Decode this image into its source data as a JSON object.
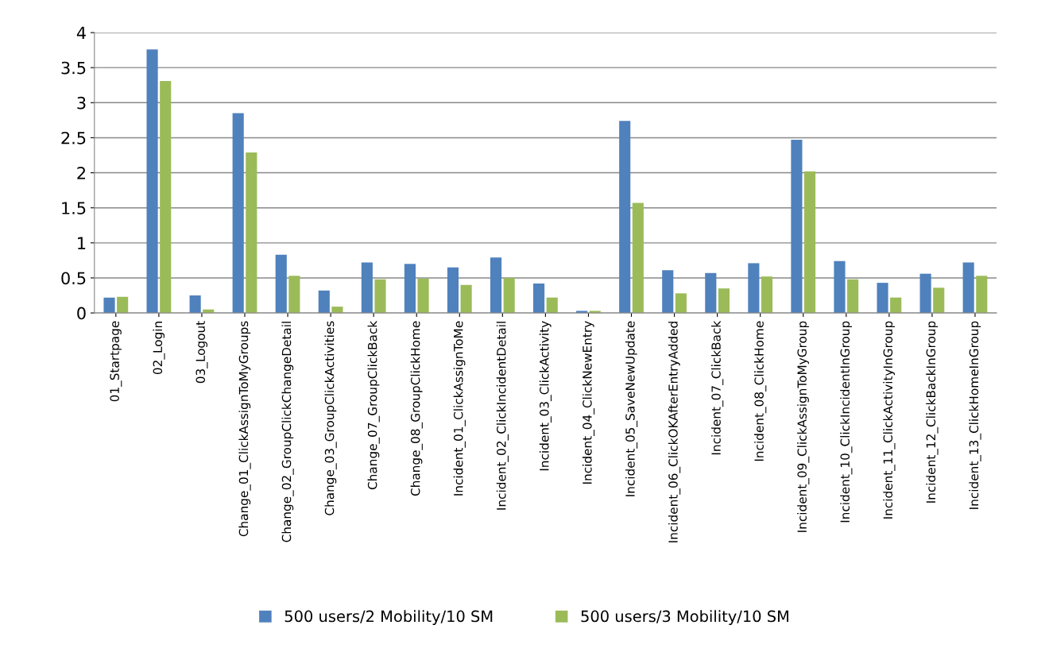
{
  "chart_data": {
    "type": "bar",
    "categories": [
      "01_Startpage",
      "02_Login",
      "03_Logout",
      "Change_01_ClickAssignToMyGroups",
      "Change_02_GroupClickChangeDetail",
      "Change_03_GroupClickActivities",
      "Change_07_GroupClickBack",
      "Change_08_GroupClickHome",
      "Incident_01_ClickAssignToMe",
      "Incident_02_ClickIncidentDetail",
      "Incident_03_ClickActivity",
      "Incident_04_ClickNewEntry",
      "Incident_05_SaveNewUpdate",
      "Incident_06_ClickOKAfterEntryAdded",
      "Incident_07_ClickBack",
      "Incident_08_ClickHome",
      "Incident_09_ClickAssignToMyGroup",
      "Incident_10_ClickIncidentInGroup",
      "Incident_11_ClickActivityInGroup",
      "Incident_12_ClickBackInGroup",
      "Incident_13_ClickHomeInGroup"
    ],
    "series": [
      {
        "name": "500 users/2 Mobility/10 SM",
        "color": "#4f81bd",
        "values": [
          0.22,
          3.76,
          0.25,
          2.85,
          0.83,
          0.32,
          0.72,
          0.7,
          0.65,
          0.79,
          0.42,
          0.03,
          2.74,
          0.61,
          0.57,
          0.71,
          2.47,
          0.74,
          0.43,
          0.56,
          0.72
        ]
      },
      {
        "name": "500 users/3 Mobility/10 SM",
        "color": "#9bbb59",
        "values": [
          0.23,
          3.31,
          0.05,
          2.29,
          0.53,
          0.09,
          0.48,
          0.49,
          0.4,
          0.5,
          0.22,
          0.03,
          1.57,
          0.28,
          0.35,
          0.52,
          2.02,
          0.48,
          0.22,
          0.36,
          0.53
        ]
      }
    ],
    "ylim": [
      0,
      4
    ],
    "yticks": [
      0,
      0.5,
      1,
      1.5,
      2,
      2.5,
      3,
      3.5,
      4
    ],
    "grid": "y",
    "legend": "bottom"
  }
}
